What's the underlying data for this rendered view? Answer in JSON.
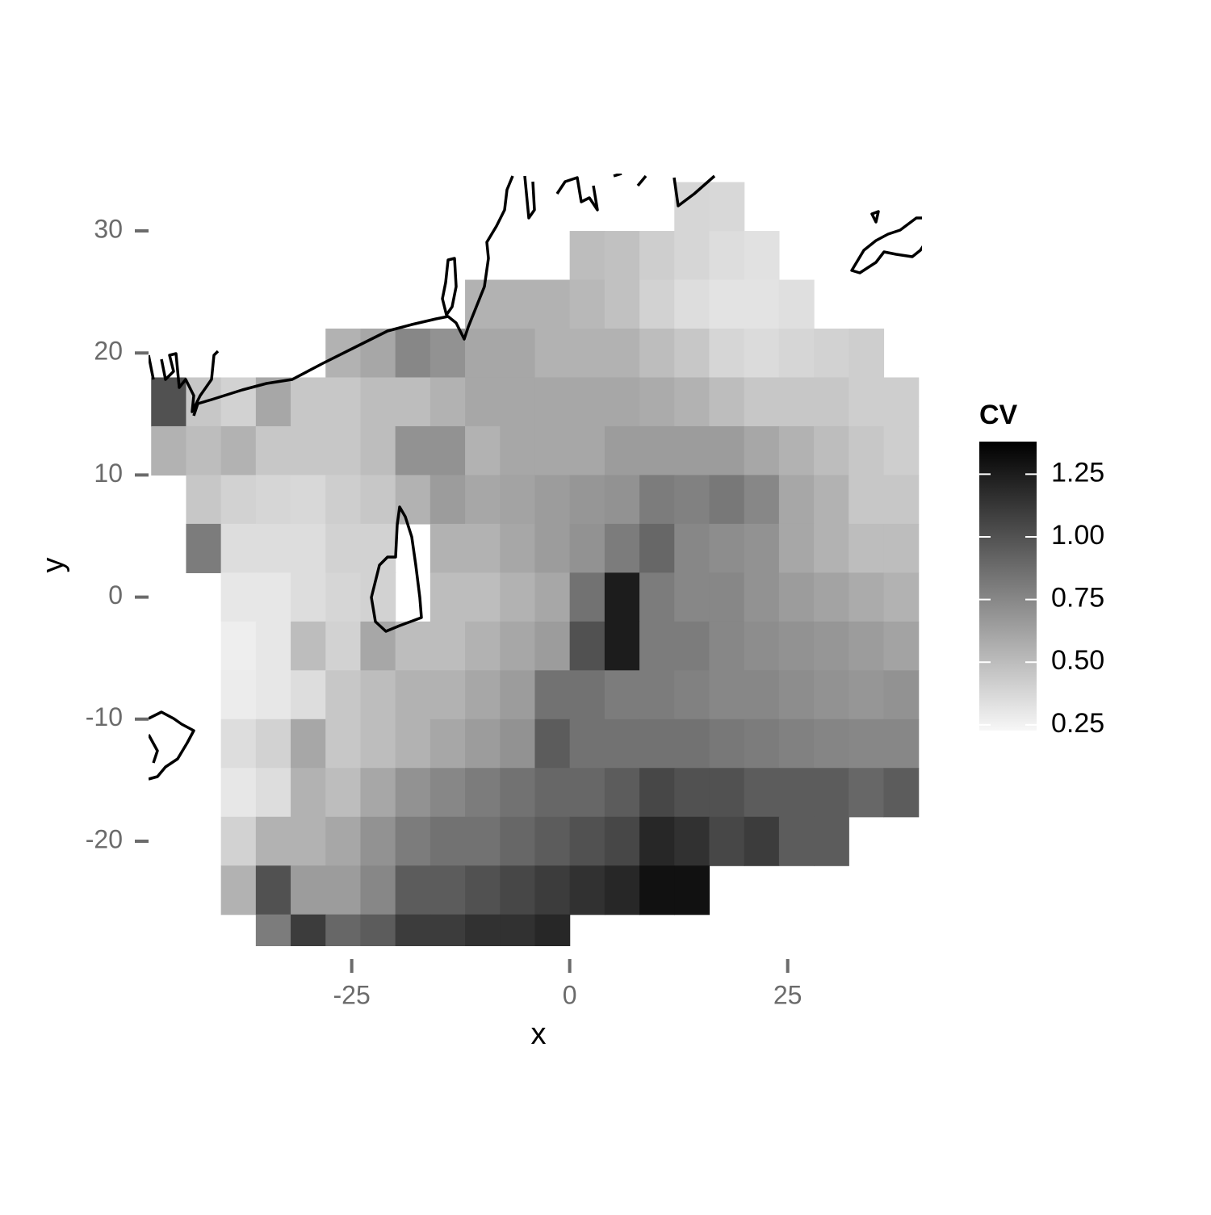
{
  "chart_data": {
    "type": "heatmap",
    "x_label": "x",
    "y_label": "y",
    "x": [
      -46,
      -42,
      -38,
      -34,
      -30,
      -26,
      -22,
      -18,
      -14,
      -10,
      -6,
      -2,
      2,
      6,
      10,
      14,
      18,
      22,
      26,
      30,
      34,
      38
    ],
    "y": [
      32,
      28,
      24,
      20,
      16,
      12,
      8,
      4,
      0,
      -4,
      -8,
      -12,
      -16,
      -20,
      -24,
      -28
    ],
    "values": [
      [
        null,
        null,
        null,
        null,
        null,
        null,
        null,
        null,
        null,
        null,
        null,
        null,
        null,
        null,
        null,
        0.38,
        0.37,
        null,
        null,
        null,
        null,
        null
      ],
      [
        null,
        null,
        null,
        null,
        null,
        null,
        null,
        null,
        null,
        null,
        null,
        null,
        0.5,
        0.48,
        0.42,
        0.38,
        0.35,
        0.33,
        null,
        null,
        null,
        null
      ],
      [
        null,
        null,
        null,
        null,
        null,
        null,
        null,
        null,
        null,
        0.55,
        0.55,
        0.55,
        0.52,
        0.48,
        0.4,
        0.35,
        0.32,
        0.32,
        0.34,
        null,
        null,
        null
      ],
      [
        null,
        null,
        null,
        null,
        null,
        0.55,
        0.6,
        0.75,
        0.7,
        0.6,
        0.6,
        0.55,
        0.55,
        0.55,
        0.5,
        0.45,
        0.38,
        0.36,
        0.38,
        0.4,
        0.42,
        null
      ],
      [
        1.0,
        0.45,
        0.4,
        0.6,
        0.45,
        0.45,
        0.5,
        0.5,
        0.55,
        0.6,
        0.6,
        0.6,
        0.6,
        0.6,
        0.58,
        0.55,
        0.5,
        0.45,
        0.45,
        0.45,
        0.42,
        0.42
      ],
      [
        0.55,
        0.5,
        0.55,
        0.45,
        0.45,
        0.45,
        0.5,
        0.7,
        0.7,
        0.55,
        0.6,
        0.6,
        0.6,
        0.65,
        0.65,
        0.65,
        0.65,
        0.6,
        0.55,
        0.5,
        0.45,
        0.42
      ],
      [
        null,
        0.45,
        0.4,
        0.38,
        0.37,
        0.42,
        0.45,
        0.55,
        0.65,
        0.6,
        0.62,
        0.65,
        0.68,
        0.7,
        0.8,
        0.78,
        0.82,
        0.75,
        0.6,
        0.55,
        0.45,
        0.45
      ],
      [
        null,
        0.8,
        0.35,
        0.35,
        0.35,
        0.4,
        0.4,
        null,
        0.55,
        0.55,
        0.6,
        0.65,
        0.7,
        0.8,
        0.9,
        0.75,
        0.72,
        0.7,
        0.6,
        0.55,
        0.5,
        0.5
      ],
      [
        null,
        null,
        0.3,
        0.3,
        0.35,
        0.38,
        0.4,
        null,
        0.5,
        0.5,
        0.55,
        0.6,
        0.85,
        1.25,
        0.8,
        0.75,
        0.75,
        0.7,
        0.65,
        0.62,
        0.58,
        0.55
      ],
      [
        null,
        null,
        0.27,
        0.3,
        0.5,
        0.4,
        0.6,
        0.5,
        0.5,
        0.55,
        0.6,
        0.65,
        1.0,
        1.25,
        0.8,
        0.8,
        0.75,
        0.72,
        0.7,
        0.68,
        0.65,
        0.62
      ],
      [
        null,
        null,
        0.28,
        0.3,
        0.35,
        0.45,
        0.5,
        0.55,
        0.55,
        0.6,
        0.65,
        0.85,
        0.85,
        0.8,
        0.8,
        0.78,
        0.75,
        0.75,
        0.72,
        0.7,
        0.68,
        0.7
      ],
      [
        null,
        null,
        0.35,
        0.4,
        0.6,
        0.45,
        0.5,
        0.55,
        0.6,
        0.65,
        0.7,
        0.95,
        0.85,
        0.85,
        0.85,
        0.85,
        0.82,
        0.8,
        0.78,
        0.76,
        0.75,
        0.75
      ],
      [
        null,
        null,
        0.3,
        0.35,
        0.55,
        0.5,
        0.6,
        0.7,
        0.75,
        0.8,
        0.85,
        0.9,
        0.9,
        0.95,
        1.05,
        1.0,
        1.0,
        0.95,
        0.95,
        0.95,
        0.9,
        0.95
      ],
      [
        null,
        null,
        0.4,
        0.55,
        0.55,
        0.6,
        0.7,
        0.8,
        0.85,
        0.85,
        0.9,
        0.95,
        1.0,
        1.05,
        1.2,
        1.15,
        1.05,
        1.1,
        0.95,
        0.95,
        null,
        null
      ],
      [
        null,
        null,
        0.55,
        1.0,
        0.65,
        0.65,
        0.75,
        0.95,
        0.95,
        1.0,
        1.05,
        1.1,
        1.15,
        1.2,
        1.3,
        1.3,
        null,
        null,
        null,
        null,
        null,
        null
      ],
      [
        null,
        null,
        null,
        0.8,
        1.1,
        0.9,
        0.95,
        1.1,
        1.1,
        1.15,
        1.15,
        1.2,
        null,
        null,
        null,
        null,
        null,
        null,
        null,
        null,
        null,
        null
      ]
    ],
    "xlim": [
      -48.3,
      40.4
    ],
    "ylim": [
      -28.6,
      34.7
    ],
    "xticks": [
      -25,
      0,
      25
    ],
    "yticks": [
      -20,
      -10,
      0,
      10,
      20,
      30
    ],
    "colorbar": {
      "title": "CV",
      "lim": [
        0.227,
        1.38
      ],
      "low_color": "#f7f7f7",
      "high_color": "#000000",
      "ticks": [
        0.25,
        {
          "value": 0.5,
          "label": "0.50"
        },
        0.75,
        {
          "value": 1,
          "label": "1.00"
        },
        1.25
      ]
    }
  }
}
